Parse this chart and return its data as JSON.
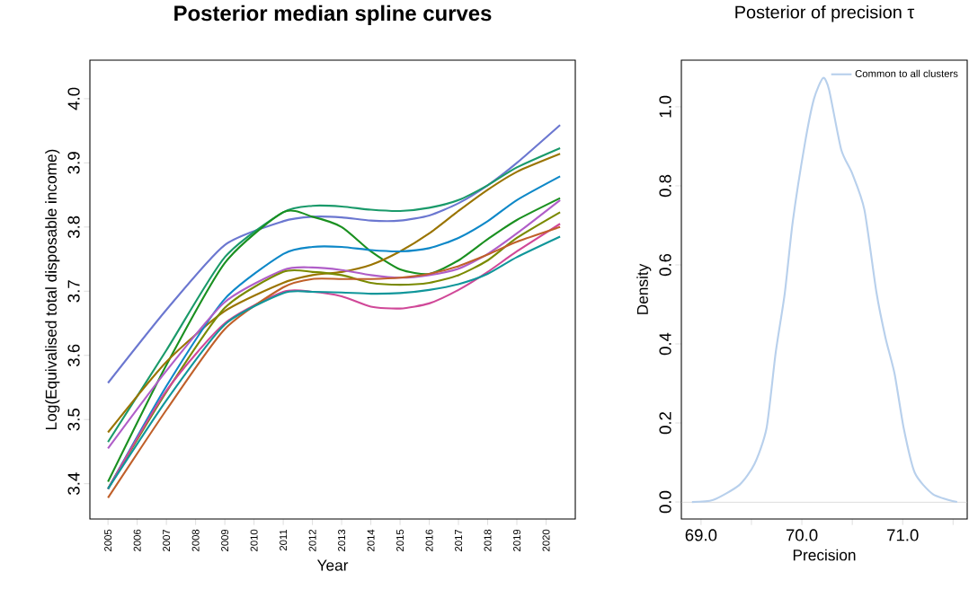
{
  "chart_data": [
    {
      "type": "line",
      "title": "Posterior median spline curves",
      "xlabel": "Year",
      "ylabel": "Log(Equivalised total disposable income)",
      "x": [
        2005,
        2007,
        2009,
        2011,
        2012,
        2013,
        2014,
        2015,
        2016,
        2017,
        2018,
        2019,
        2020.48
      ],
      "series": [
        {
          "color": "#6b77d0",
          "values": [
            3.557,
            3.671,
            3.772,
            3.809,
            3.816,
            3.815,
            3.81,
            3.81,
            3.818,
            3.837,
            3.865,
            3.9,
            3.959
          ]
        },
        {
          "color": "#1a9a6a",
          "values": [
            3.465,
            3.608,
            3.753,
            3.823,
            3.833,
            3.832,
            3.827,
            3.825,
            3.83,
            3.842,
            3.865,
            3.893,
            3.923
          ]
        },
        {
          "color": "#1a9020",
          "values": [
            3.403,
            3.585,
            3.744,
            3.823,
            3.816,
            3.8,
            3.762,
            3.734,
            3.727,
            3.748,
            3.781,
            3.811,
            3.845
          ]
        },
        {
          "color": "#9a7400",
          "values": [
            3.48,
            3.59,
            3.669,
            3.713,
            3.725,
            3.73,
            3.741,
            3.762,
            3.79,
            3.825,
            3.858,
            3.886,
            3.914
          ]
        },
        {
          "color": "#0e88c8",
          "values": [
            3.392,
            3.552,
            3.688,
            3.758,
            3.769,
            3.769,
            3.764,
            3.762,
            3.767,
            3.783,
            3.809,
            3.842,
            3.879
          ]
        },
        {
          "color": "#b05ec8",
          "values": [
            3.455,
            3.576,
            3.683,
            3.733,
            3.737,
            3.733,
            3.725,
            3.721,
            3.725,
            3.735,
            3.758,
            3.79,
            3.842
          ]
        },
        {
          "color": "#7a8a00",
          "values": [
            3.392,
            3.543,
            3.674,
            3.73,
            3.73,
            3.725,
            3.713,
            3.71,
            3.713,
            3.725,
            3.748,
            3.783,
            3.823
          ]
        },
        {
          "color": "#d04898",
          "values": [
            3.392,
            3.545,
            3.65,
            3.699,
            3.699,
            3.692,
            3.676,
            3.673,
            3.681,
            3.702,
            3.73,
            3.762,
            3.805
          ]
        },
        {
          "color": "#c0602a",
          "values": [
            3.378,
            3.515,
            3.641,
            3.706,
            3.719,
            3.719,
            3.719,
            3.721,
            3.727,
            3.739,
            3.757,
            3.777,
            3.8
          ]
        },
        {
          "color": "#10969a",
          "values": [
            3.392,
            3.53,
            3.648,
            3.697,
            3.699,
            3.698,
            3.696,
            3.697,
            3.702,
            3.711,
            3.727,
            3.753,
            3.785
          ]
        }
      ],
      "xlim": [
        2004.38,
        2021.0
      ],
      "ylim": [
        3.345,
        4.06
      ],
      "xticks": [
        2005,
        2006,
        2007,
        2008,
        2009,
        2010,
        2011,
        2012,
        2013,
        2014,
        2015,
        2016,
        2017,
        2018,
        2019,
        2020
      ],
      "yticks": [
        3.4,
        3.5,
        3.6,
        3.7,
        3.8,
        3.9,
        {
          "value": 4,
          "label": "4.0"
        }
      ]
    },
    {
      "type": "line",
      "title": "Posterior of precision τ",
      "xlabel": "Precision",
      "ylabel": "Density",
      "legend": "top right",
      "series": [
        {
          "name": "Common to all clusters",
          "color": "#b8d0ec",
          "x": [
            68.91,
            69.12,
            69.38,
            69.53,
            69.65,
            69.74,
            69.83,
            69.91,
            70.03,
            70.12,
            70.21,
            70.27,
            70.39,
            70.5,
            70.62,
            70.74,
            70.83,
            70.92,
            71.01,
            71.12,
            71.3,
            71.54
          ],
          "values": [
            0,
            0.005,
            0.043,
            0.096,
            0.187,
            0.377,
            0.527,
            0.71,
            0.907,
            1.02,
            1.073,
            1.043,
            0.892,
            0.831,
            0.74,
            0.53,
            0.415,
            0.324,
            0.187,
            0.074,
            0.02,
            0
          ]
        }
      ],
      "ref_lines": [
        {
          "axis": "y",
          "value": 0,
          "color": "#bebebe"
        }
      ],
      "xlim": [
        68.805,
        71.64
      ],
      "ylim": [
        -0.043,
        1.118
      ],
      "xticks": [
        {
          "value": 69,
          "label": "69.0"
        },
        {
          "value": 69.5,
          "label": null
        },
        {
          "value": 70,
          "label": "70.0"
        },
        {
          "value": 70.5,
          "label": null
        },
        {
          "value": 71,
          "label": "71.0"
        },
        {
          "value": 71.5,
          "label": null
        }
      ],
      "yticks": [
        {
          "value": 0,
          "label": "0.0"
        },
        0.2,
        0.4,
        0.6,
        0.8,
        {
          "value": 1,
          "label": "1.0"
        }
      ]
    }
  ]
}
